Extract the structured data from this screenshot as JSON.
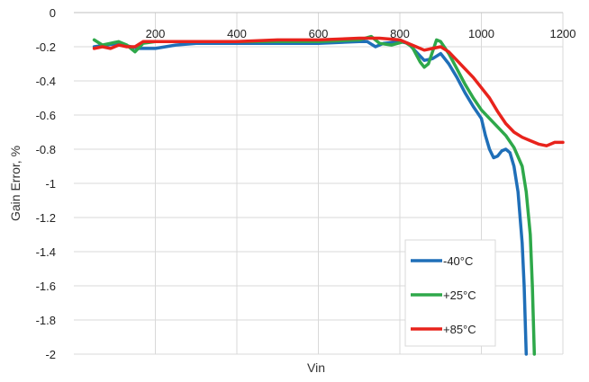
{
  "chart_data": {
    "type": "line",
    "title": "",
    "xlabel": "Vin",
    "ylabel": "Gain Error, %",
    "xlim": [
      0,
      1200
    ],
    "ylim": [
      -2,
      0
    ],
    "x_ticks": [
      200,
      400,
      600,
      800,
      1000,
      1200
    ],
    "y_ticks": [
      0,
      -0.2,
      -0.4,
      -0.6,
      -0.8,
      -1,
      -1.2,
      -1.4,
      -1.6,
      -1.8,
      -2
    ],
    "x_tick_labels": [
      "200",
      "400",
      "600",
      "800",
      "1000",
      "1200"
    ],
    "y_tick_labels": [
      "0",
      "-0.2",
      "-0.4",
      "-0.6",
      "-0.8",
      "-1",
      "-1.2",
      "-1.4",
      "-1.6",
      "-1.8",
      "-2"
    ],
    "grid": true,
    "x_axis_position": "top",
    "legend_position": "bottom-right",
    "series": [
      {
        "name": "-40°C",
        "color": "#1F6FB8",
        "points": [
          [
            50,
            -0.2
          ],
          [
            80,
            -0.19
          ],
          [
            110,
            -0.18
          ],
          [
            140,
            -0.2
          ],
          [
            160,
            -0.21
          ],
          [
            200,
            -0.21
          ],
          [
            250,
            -0.19
          ],
          [
            300,
            -0.18
          ],
          [
            400,
            -0.18
          ],
          [
            500,
            -0.18
          ],
          [
            600,
            -0.18
          ],
          [
            700,
            -0.17
          ],
          [
            720,
            -0.17
          ],
          [
            740,
            -0.2
          ],
          [
            760,
            -0.18
          ],
          [
            800,
            -0.17
          ],
          [
            820,
            -0.18
          ],
          [
            840,
            -0.23
          ],
          [
            860,
            -0.28
          ],
          [
            880,
            -0.27
          ],
          [
            900,
            -0.24
          ],
          [
            920,
            -0.3
          ],
          [
            940,
            -0.38
          ],
          [
            960,
            -0.47
          ],
          [
            980,
            -0.55
          ],
          [
            1000,
            -0.62
          ],
          [
            1010,
            -0.72
          ],
          [
            1020,
            -0.8
          ],
          [
            1030,
            -0.85
          ],
          [
            1040,
            -0.84
          ],
          [
            1050,
            -0.81
          ],
          [
            1060,
            -0.8
          ],
          [
            1070,
            -0.82
          ],
          [
            1080,
            -0.9
          ],
          [
            1090,
            -1.05
          ],
          [
            1100,
            -1.35
          ],
          [
            1105,
            -1.6
          ],
          [
            1110,
            -2.0
          ]
        ]
      },
      {
        "name": "+25°C",
        "color": "#2EA84A",
        "points": [
          [
            50,
            -0.16
          ],
          [
            70,
            -0.19
          ],
          [
            90,
            -0.18
          ],
          [
            110,
            -0.17
          ],
          [
            130,
            -0.19
          ],
          [
            150,
            -0.23
          ],
          [
            170,
            -0.18
          ],
          [
            200,
            -0.17
          ],
          [
            300,
            -0.17
          ],
          [
            400,
            -0.17
          ],
          [
            500,
            -0.17
          ],
          [
            600,
            -0.17
          ],
          [
            700,
            -0.16
          ],
          [
            730,
            -0.14
          ],
          [
            750,
            -0.18
          ],
          [
            780,
            -0.19
          ],
          [
            810,
            -0.17
          ],
          [
            830,
            -0.2
          ],
          [
            850,
            -0.29
          ],
          [
            860,
            -0.32
          ],
          [
            870,
            -0.3
          ],
          [
            890,
            -0.16
          ],
          [
            900,
            -0.17
          ],
          [
            920,
            -0.24
          ],
          [
            940,
            -0.33
          ],
          [
            960,
            -0.42
          ],
          [
            980,
            -0.5
          ],
          [
            1000,
            -0.57
          ],
          [
            1020,
            -0.62
          ],
          [
            1040,
            -0.67
          ],
          [
            1060,
            -0.72
          ],
          [
            1080,
            -0.79
          ],
          [
            1100,
            -0.9
          ],
          [
            1110,
            -1.05
          ],
          [
            1120,
            -1.3
          ],
          [
            1125,
            -1.6
          ],
          [
            1130,
            -2.0
          ]
        ]
      },
      {
        "name": "+85°C",
        "color": "#E8231C",
        "points": [
          [
            50,
            -0.21
          ],
          [
            70,
            -0.2
          ],
          [
            90,
            -0.21
          ],
          [
            110,
            -0.19
          ],
          [
            130,
            -0.2
          ],
          [
            150,
            -0.2
          ],
          [
            170,
            -0.17
          ],
          [
            200,
            -0.17
          ],
          [
            300,
            -0.17
          ],
          [
            400,
            -0.17
          ],
          [
            500,
            -0.16
          ],
          [
            600,
            -0.16
          ],
          [
            700,
            -0.15
          ],
          [
            750,
            -0.15
          ],
          [
            800,
            -0.16
          ],
          [
            820,
            -0.18
          ],
          [
            840,
            -0.2
          ],
          [
            860,
            -0.22
          ],
          [
            880,
            -0.21
          ],
          [
            900,
            -0.2
          ],
          [
            920,
            -0.23
          ],
          [
            940,
            -0.28
          ],
          [
            960,
            -0.33
          ],
          [
            980,
            -0.38
          ],
          [
            1000,
            -0.44
          ],
          [
            1020,
            -0.5
          ],
          [
            1040,
            -0.58
          ],
          [
            1060,
            -0.65
          ],
          [
            1080,
            -0.7
          ],
          [
            1100,
            -0.73
          ],
          [
            1120,
            -0.75
          ],
          [
            1140,
            -0.77
          ],
          [
            1160,
            -0.78
          ],
          [
            1180,
            -0.76
          ],
          [
            1200,
            -0.76
          ]
        ]
      }
    ]
  }
}
